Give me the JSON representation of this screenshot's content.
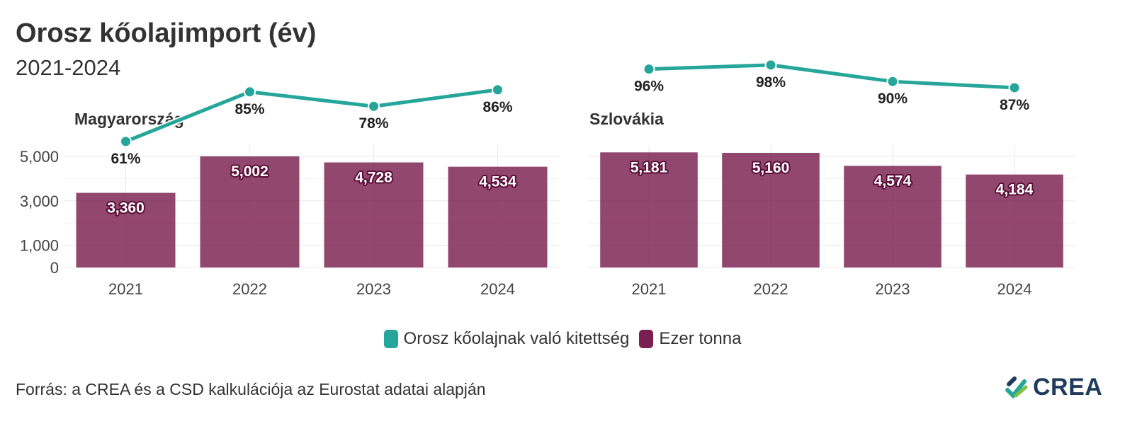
{
  "title": "Orosz kőolajimport (év)",
  "subtitle": "2021-2024",
  "legend": {
    "line_label": "Orosz kőolajnak való kitettség",
    "bar_label": "Ezer tonna"
  },
  "footer": "Forrás: a CREA és a CSD kalkulációja az Eurostat adatai alapján",
  "logo_text": "CREA",
  "colors": {
    "bar": "#7a1f4f",
    "line": "#26a69a",
    "grid": "#e8e8e8"
  },
  "chart_data": [
    {
      "type": "bar",
      "title": "Magyarország",
      "categories": [
        "2021",
        "2022",
        "2023",
        "2024"
      ],
      "ylim": [
        0,
        5000
      ],
      "yticks": [
        "0",
        "1,000",
        "3,000",
        "5,000"
      ],
      "ytick_values": [
        0,
        1000,
        3000,
        5000
      ],
      "series": [
        {
          "name": "Ezer tonna",
          "values": [
            3360,
            5002,
            4728,
            4534
          ],
          "labels": [
            "3,360",
            "5,002",
            "4,728",
            "4,534"
          ]
        },
        {
          "name": "Orosz kőolajnak való kitettség",
          "type": "line",
          "values": [
            61,
            85,
            78,
            86
          ],
          "labels": [
            "61%",
            "85%",
            "78%",
            "86%"
          ]
        }
      ]
    },
    {
      "type": "bar",
      "title": "Szlovákia",
      "categories": [
        "2021",
        "2022",
        "2023",
        "2024"
      ],
      "ylim": [
        0,
        5000
      ],
      "series": [
        {
          "name": "Ezer tonna",
          "values": [
            5181,
            5160,
            4574,
            4184
          ],
          "labels": [
            "5,181",
            "5,160",
            "4,574",
            "4,184"
          ]
        },
        {
          "name": "Orosz kőolajnak való kitettség",
          "type": "line",
          "values": [
            96,
            98,
            90,
            87
          ],
          "labels": [
            "96%",
            "98%",
            "90%",
            "87%"
          ]
        }
      ]
    }
  ]
}
